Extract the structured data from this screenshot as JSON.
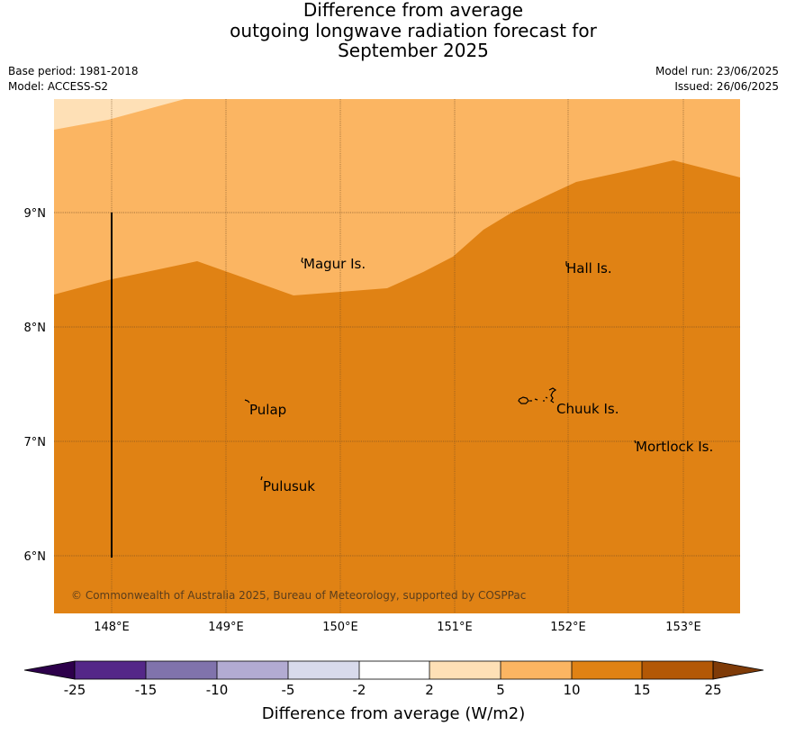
{
  "title": {
    "line1": "Difference from average",
    "line2": "outgoing longwave radiation forecast for",
    "line3": "September 2025"
  },
  "meta": {
    "base_period": "Base period: 1981-2018",
    "model": "Model: ACCESS-S2",
    "model_run": "Model run: 23/06/2025",
    "issued": "Issued: 26/06/2025"
  },
  "map": {
    "lat_labels": [
      "9°N",
      "8°N",
      "7°N",
      "6°N"
    ],
    "lon_labels": [
      "148°E",
      "149°E",
      "150°E",
      "151°E",
      "152°E",
      "153°E"
    ],
    "places": {
      "magur": "Magur Is.",
      "hall": "Hall Is.",
      "pulap": "Pulap",
      "chuuk": "Chuuk Is.",
      "mortlock": "Mortlock Is.",
      "pulusuk": "Pulusuk"
    },
    "copyright": "© Commonwealth of Australia 2025, Bureau of Meteorology, supported by COSPPac",
    "colors": {
      "band_5_10": "#fbb562",
      "band_10_15": "#e08214",
      "band_2_5": "#fee0b6"
    }
  },
  "colorbar": {
    "tick_labels": [
      "-25",
      "-15",
      "-10",
      "-5",
      "-2",
      "2",
      "5",
      "10",
      "15",
      "25"
    ],
    "colors": [
      "#2d004b",
      "#542788",
      "#8073ac",
      "#b2abd2",
      "#d8daeb",
      "#ffffff",
      "#fee0b6",
      "#fbb562",
      "#e08214",
      "#b35806",
      "#7f3b08"
    ],
    "label": "Difference from average (W/m2)"
  }
}
